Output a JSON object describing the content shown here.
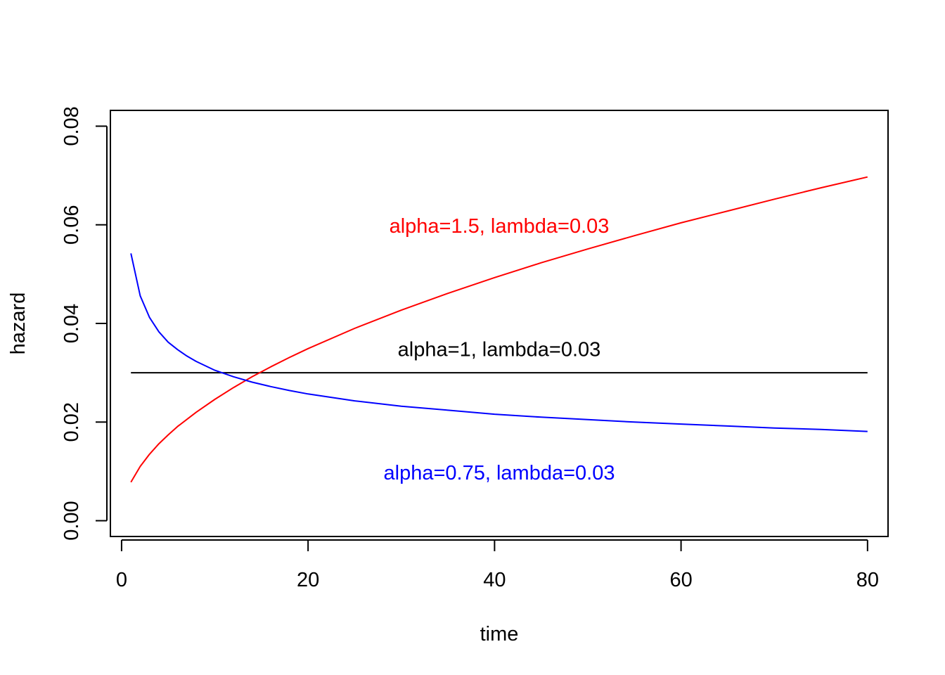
{
  "chart_data": {
    "type": "line",
    "title": "",
    "xlabel": "time",
    "ylabel": "hazard",
    "xlim": [
      -1.2,
      82.2
    ],
    "ylim": [
      -0.0032,
      0.0832
    ],
    "x_ticks": [
      0,
      20,
      40,
      60,
      80
    ],
    "x_tick_labels": [
      "0",
      "20",
      "40",
      "60",
      "80"
    ],
    "y_ticks": [
      0.0,
      0.02,
      0.04,
      0.06,
      0.08
    ],
    "y_tick_labels": [
      "0.00",
      "0.02",
      "0.04",
      "0.06",
      "0.08"
    ],
    "grid": false,
    "series": [
      {
        "color": "#000000",
        "x": [
          1,
          80
        ],
        "y": [
          0.03,
          0.03
        ]
      },
      {
        "color": "#ff0000",
        "x": [
          1,
          2,
          3,
          4,
          5,
          6,
          8,
          10,
          12,
          14,
          16,
          18,
          20,
          25,
          30,
          35,
          40,
          45,
          50,
          55,
          60,
          65,
          70,
          75,
          80
        ],
        "y": [
          0.0078,
          0.011,
          0.0135,
          0.0156,
          0.0174,
          0.0191,
          0.022,
          0.0246,
          0.027,
          0.0292,
          0.0312,
          0.0331,
          0.0349,
          0.039,
          0.0427,
          0.0461,
          0.0493,
          0.0523,
          0.0551,
          0.0578,
          0.0604,
          0.0628,
          0.0652,
          0.0675,
          0.0697
        ]
      },
      {
        "color": "#0000ff",
        "x": [
          1,
          2,
          3,
          4,
          5,
          6,
          7,
          8,
          10,
          12,
          14,
          16,
          18,
          20,
          25,
          30,
          35,
          40,
          45,
          50,
          55,
          60,
          65,
          70,
          75,
          80
        ],
        "y": [
          0.0542,
          0.0456,
          0.0412,
          0.0383,
          0.0362,
          0.0347,
          0.0334,
          0.0323,
          0.0305,
          0.0292,
          0.0281,
          0.0272,
          0.0264,
          0.0257,
          0.0243,
          0.0232,
          0.0224,
          0.0216,
          0.021,
          0.0205,
          0.02,
          0.0196,
          0.0192,
          0.0188,
          0.0185,
          0.0181
        ]
      }
    ],
    "annotations": [
      {
        "text": "alpha=1.5, lambda=0.03",
        "x": 40.5,
        "y": 0.0598,
        "color": "#ff0000"
      },
      {
        "text": "alpha=1, lambda=0.03",
        "x": 40.5,
        "y": 0.0348,
        "color": "#000000"
      },
      {
        "text": "alpha=0.75, lambda=0.03",
        "x": 40.5,
        "y": 0.0098,
        "color": "#0000ff"
      }
    ]
  }
}
